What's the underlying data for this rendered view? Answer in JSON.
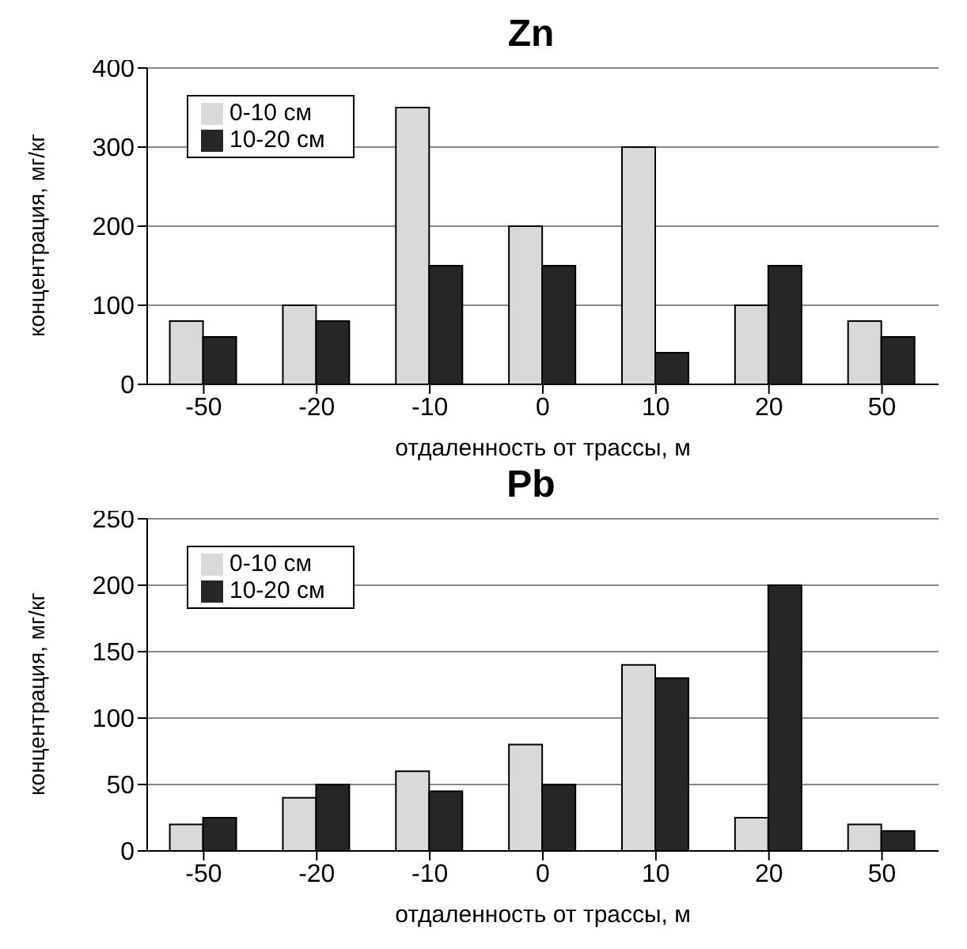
{
  "chart_data": [
    {
      "type": "bar",
      "title": "Zn",
      "xlabel": "отдаленность от трассы, м",
      "ylabel": "концентрация, мг/кг",
      "categories": [
        "-50",
        "-20",
        "-10",
        "0",
        "10",
        "20",
        "50"
      ],
      "series": [
        {
          "name": "0-10 см",
          "color": "#d9d9d9",
          "values": [
            80,
            100,
            350,
            200,
            300,
            100,
            80
          ]
        },
        {
          "name": "10-20 см",
          "color": "#262626",
          "values": [
            60,
            80,
            150,
            150,
            40,
            150,
            60
          ]
        }
      ],
      "ylim": [
        0,
        400
      ],
      "yticks": [
        0,
        100,
        200,
        300,
        400
      ],
      "grid": "y",
      "legend": "top left"
    },
    {
      "type": "bar",
      "title": "Pb",
      "xlabel": "отдаленность от трассы, м",
      "ylabel": "концентрация, мг/кг",
      "categories": [
        "-50",
        "-20",
        "-10",
        "0",
        "10",
        "20",
        "50"
      ],
      "series": [
        {
          "name": "0-10 см",
          "color": "#d9d9d9",
          "values": [
            20,
            40,
            60,
            80,
            140,
            25,
            20
          ]
        },
        {
          "name": "10-20 см",
          "color": "#262626",
          "values": [
            25,
            50,
            45,
            50,
            130,
            200,
            15
          ]
        }
      ],
      "ylim": [
        0,
        250
      ],
      "yticks": [
        0,
        50,
        100,
        150,
        200,
        250
      ],
      "grid": "y",
      "legend": "top left"
    }
  ]
}
